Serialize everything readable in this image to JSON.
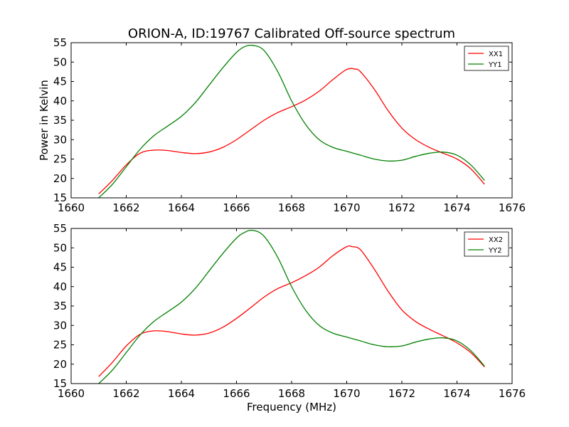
{
  "title": "ORION-A, ID:19767 Calibrated Off-source spectrum",
  "colors": {
    "xx": "#ff0000",
    "yy": "#008000"
  },
  "chart_data": [
    {
      "type": "line",
      "ylabel": "Power in Kelvin",
      "xlabel": "",
      "xlim": [
        1660,
        1676
      ],
      "ylim": [
        15,
        55
      ],
      "xticks": [
        1660,
        1662,
        1664,
        1666,
        1668,
        1670,
        1672,
        1674,
        1676
      ],
      "yticks": [
        15,
        20,
        25,
        30,
        35,
        40,
        45,
        50,
        55
      ],
      "legend": "top-right",
      "series": [
        {
          "name": "XX1",
          "color": "#ff0000",
          "x": [
            1661.0,
            1661.5,
            1662.0,
            1662.5,
            1663.0,
            1663.5,
            1664.0,
            1664.5,
            1665.0,
            1665.5,
            1666.0,
            1666.5,
            1667.0,
            1667.5,
            1668.0,
            1668.5,
            1669.0,
            1669.5,
            1670.0,
            1670.3,
            1670.5,
            1671.0,
            1671.5,
            1672.0,
            1672.5,
            1673.0,
            1673.5,
            1674.0,
            1674.5,
            1675.0
          ],
          "y": [
            16.0,
            19.5,
            23.5,
            26.5,
            27.3,
            27.2,
            26.7,
            26.4,
            26.8,
            28.0,
            30.0,
            32.5,
            35.0,
            37.0,
            38.5,
            40.2,
            42.5,
            45.5,
            48.1,
            48.2,
            47.5,
            43.0,
            37.5,
            33.0,
            30.0,
            28.0,
            26.5,
            25.0,
            22.5,
            18.5
          ]
        },
        {
          "name": "YY1",
          "color": "#008000",
          "x": [
            1661.0,
            1661.5,
            1662.0,
            1662.5,
            1663.0,
            1663.5,
            1664.0,
            1664.5,
            1665.0,
            1665.5,
            1666.0,
            1666.3,
            1666.6,
            1667.0,
            1667.5,
            1668.0,
            1668.5,
            1669.0,
            1669.5,
            1670.0,
            1670.5,
            1671.0,
            1671.5,
            1672.0,
            1672.5,
            1673.0,
            1673.5,
            1674.0,
            1674.5,
            1675.0
          ],
          "y": [
            15.0,
            18.5,
            23.0,
            27.5,
            31.0,
            33.5,
            36.0,
            39.5,
            44.0,
            48.5,
            52.5,
            54.0,
            54.3,
            53.0,
            47.5,
            40.0,
            34.0,
            30.0,
            28.0,
            27.0,
            26.0,
            25.0,
            24.5,
            24.7,
            25.7,
            26.5,
            26.8,
            26.0,
            23.5,
            19.5
          ]
        }
      ]
    },
    {
      "type": "line",
      "ylabel": "",
      "xlabel": "Frequency (MHz)",
      "xlim": [
        1660,
        1676
      ],
      "ylim": [
        15,
        55
      ],
      "xticks": [
        1660,
        1662,
        1664,
        1666,
        1668,
        1670,
        1672,
        1674,
        1676
      ],
      "yticks": [
        15,
        20,
        25,
        30,
        35,
        40,
        45,
        50,
        55
      ],
      "legend": "top-right",
      "series": [
        {
          "name": "XX2",
          "color": "#ff0000",
          "x": [
            1661.0,
            1661.5,
            1662.0,
            1662.5,
            1663.0,
            1663.5,
            1664.0,
            1664.5,
            1665.0,
            1665.5,
            1666.0,
            1666.5,
            1667.0,
            1667.5,
            1668.0,
            1668.5,
            1669.0,
            1669.5,
            1670.0,
            1670.2,
            1670.5,
            1671.0,
            1671.5,
            1672.0,
            1672.5,
            1673.0,
            1673.5,
            1674.0,
            1674.5,
            1675.0
          ],
          "y": [
            16.8,
            20.5,
            24.7,
            27.7,
            28.6,
            28.4,
            27.8,
            27.5,
            28.0,
            29.5,
            31.8,
            34.5,
            37.3,
            39.5,
            41.0,
            42.8,
            45.0,
            48.0,
            50.3,
            50.3,
            49.5,
            44.5,
            38.8,
            34.0,
            31.0,
            29.0,
            27.3,
            25.5,
            23.0,
            19.3
          ]
        },
        {
          "name": "YY2",
          "color": "#008000",
          "x": [
            1661.0,
            1661.5,
            1662.0,
            1662.5,
            1663.0,
            1663.5,
            1664.0,
            1664.5,
            1665.0,
            1665.5,
            1666.0,
            1666.3,
            1666.6,
            1667.0,
            1667.5,
            1668.0,
            1668.5,
            1669.0,
            1669.5,
            1670.0,
            1670.5,
            1671.0,
            1671.5,
            1672.0,
            1672.5,
            1673.0,
            1673.5,
            1674.0,
            1674.5,
            1675.0
          ],
          "y": [
            15.0,
            18.5,
            23.0,
            27.5,
            31.0,
            33.5,
            36.0,
            39.5,
            44.0,
            48.5,
            52.5,
            54.0,
            54.5,
            53.0,
            47.5,
            40.0,
            34.0,
            30.0,
            28.0,
            27.0,
            26.0,
            25.0,
            24.5,
            24.7,
            25.7,
            26.5,
            26.8,
            26.0,
            23.5,
            19.5
          ]
        }
      ]
    }
  ]
}
